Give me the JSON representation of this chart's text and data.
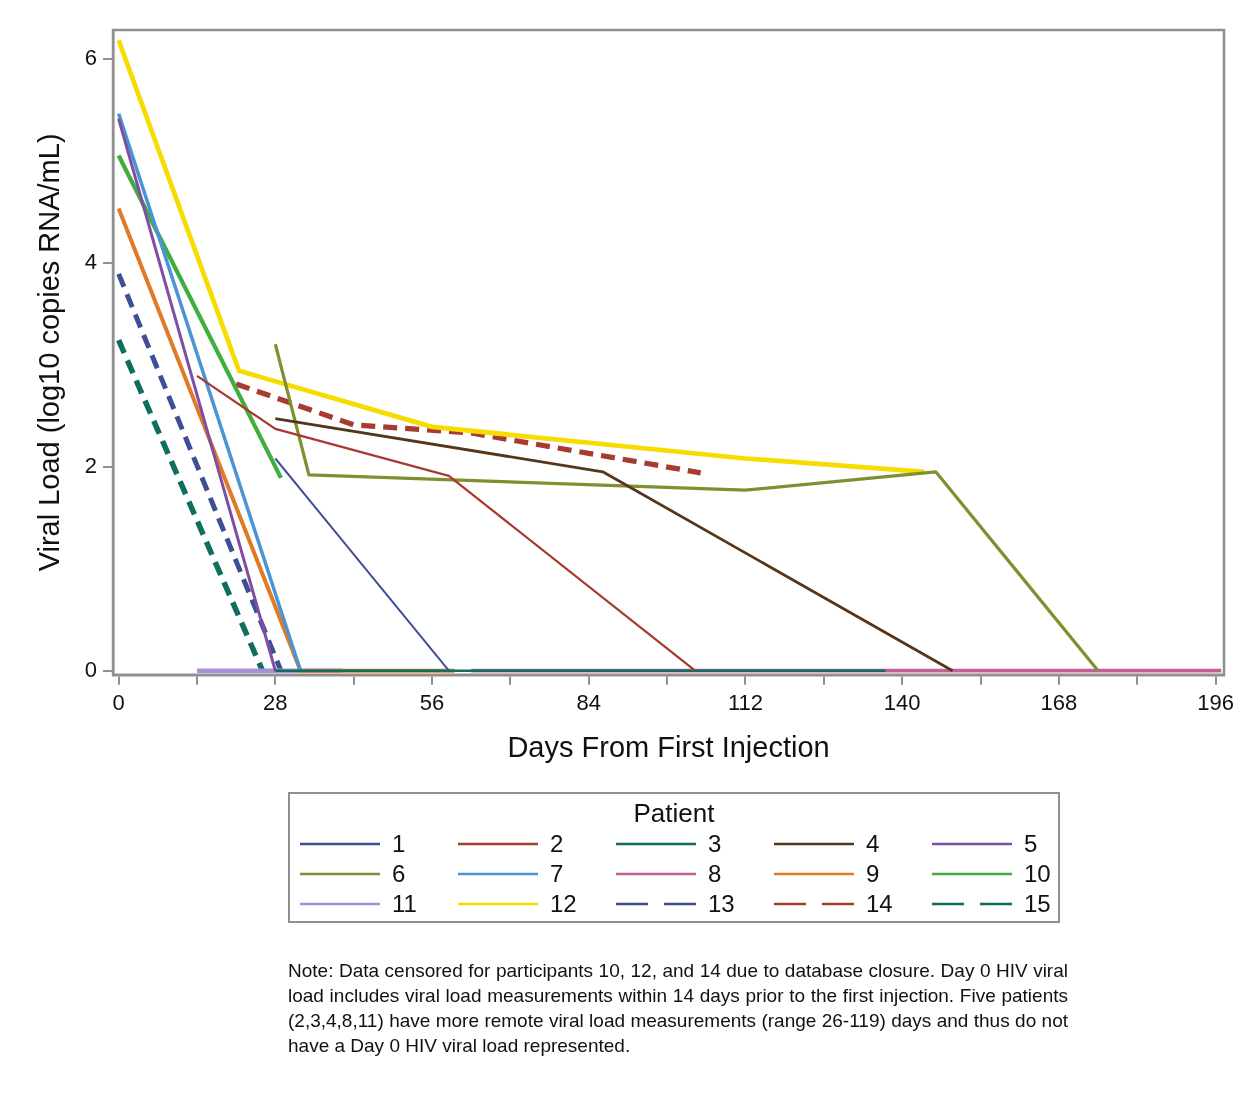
{
  "chart_data": {
    "type": "line",
    "xlabel": "Days From First Injection",
    "ylabel": "Viral Load (log10 copies RNA/mL)",
    "legend_title": "Patient",
    "xlim": [
      -1,
      197.5
    ],
    "ylim": [
      -0.04,
      6.28
    ],
    "xticks": [
      0,
      {
        "value": 14,
        "label": null
      },
      28,
      {
        "value": 42,
        "label": null
      },
      56,
      {
        "value": 70,
        "label": null
      },
      84,
      {
        "value": 98,
        "label": null
      },
      112,
      {
        "value": 126,
        "label": null
      },
      140,
      {
        "value": 154,
        "label": null
      },
      168,
      {
        "value": 182,
        "label": null
      },
      196
    ],
    "yticks": [
      0,
      2,
      4,
      6
    ],
    "grid": false,
    "legend": "bottom",
    "marker": "none",
    "series": [
      {
        "name": "1",
        "color": "#3f4f95",
        "x": [
          28,
          59
        ],
        "values": [
          2.08,
          0
        ]
      },
      {
        "name": "2",
        "color": "#a83a32",
        "x": [
          14,
          28,
          59,
          103
        ],
        "values": [
          2.89,
          2.37,
          1.91,
          0
        ]
      },
      {
        "name": "3",
        "color": "#0f6e5e",
        "x": [
          28,
          137
        ],
        "values": [
          0,
          0
        ]
      },
      {
        "name": "4",
        "color": "#55361a",
        "x": [
          28,
          86.5,
          149
        ],
        "values": [
          2.47,
          1.95,
          0
        ]
      },
      {
        "name": "5",
        "color": "#7f4ea3",
        "x": [
          0,
          28
        ],
        "values": [
          5.41,
          0
        ]
      },
      {
        "name": "6",
        "color": "#7f9030",
        "x": [
          28,
          34,
          112,
          146,
          175
        ],
        "values": [
          3.2,
          1.92,
          1.77,
          1.95,
          0
        ]
      },
      {
        "name": "7",
        "color": "#4a94d4",
        "x": [
          0,
          32.5
        ],
        "values": [
          5.46,
          0
        ]
      },
      {
        "name": "8",
        "color": "#c2609a",
        "x": [
          63,
          197
        ],
        "values": [
          0,
          0
        ]
      },
      {
        "name": "9",
        "color": "#e07a26",
        "x": [
          0,
          32.5,
          60
        ],
        "values": [
          4.53,
          0,
          0
        ]
      },
      {
        "name": "10",
        "color": "#3fae3f",
        "x": [
          0,
          29
        ],
        "values": [
          5.05,
          1.89
        ]
      },
      {
        "name": "11",
        "color": "#a98fd6",
        "x": [
          14,
          40
        ],
        "values": [
          0,
          0
        ]
      },
      {
        "name": "12",
        "color": "#f7dc00",
        "x": [
          0,
          21.5,
          56,
          112,
          144
        ],
        "values": [
          6.18,
          2.94,
          2.39,
          2.08,
          1.95
        ]
      },
      {
        "name": "13",
        "color": "#3f4f95",
        "line_style": "dashed",
        "x": [
          0,
          29
        ],
        "values": [
          3.89,
          0
        ]
      },
      {
        "name": "14",
        "color": "#a83a32",
        "line_style": "dashed",
        "x": [
          21,
          42,
          63,
          104
        ],
        "values": [
          2.81,
          2.41,
          2.33,
          1.94
        ]
      },
      {
        "name": "15",
        "color": "#0f6e5e",
        "line_style": "dashed",
        "x": [
          0,
          25.7
        ],
        "values": [
          3.24,
          0
        ]
      }
    ],
    "annotations": [
      "Note: Data censored for participants 10, 12, and 14 due to database closure. Day 0 HIV viral load includes viral load measurements within 14 days prior to the first injection. Five patients (2,3,4,8,11) have more remote viral load measurements (range 26-119) days and thus do not have a Day 0 HIV viral load represented."
    ]
  }
}
